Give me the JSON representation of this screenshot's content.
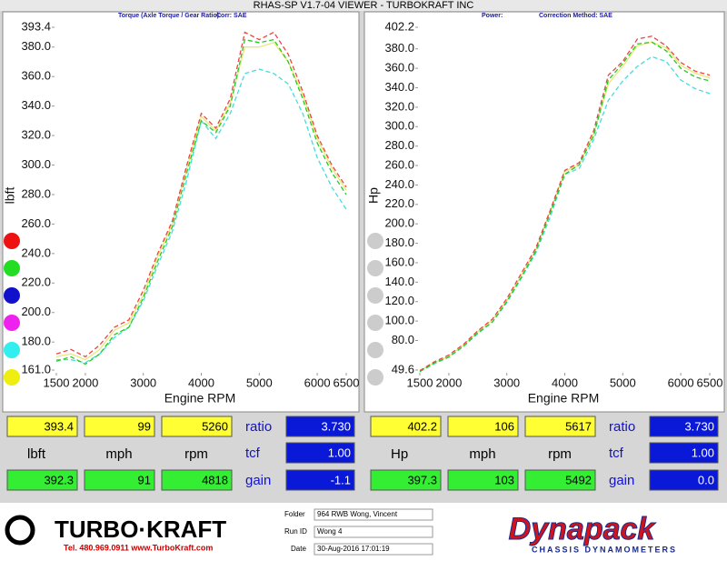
{
  "header": {
    "title": "RHAS-SP V1.7-04  VIEWER - TURBOKRAFT INC"
  },
  "chart_data": [
    {
      "type": "line",
      "subtitle": "Torque (Axle Torque / Gear Ratio):",
      "note": "Corr: SAE",
      "x_label": "Engine RPM",
      "y_label": "lbft",
      "x": [
        1500,
        1750,
        2000,
        2250,
        2500,
        2750,
        3000,
        3250,
        3500,
        3750,
        4000,
        4250,
        4500,
        4750,
        5000,
        5250,
        5500,
        5750,
        6000,
        6250,
        6500
      ],
      "xlim": [
        1500,
        6500
      ],
      "xticks": [
        1500,
        2000,
        3000,
        4000,
        5000,
        6000,
        6500
      ],
      "ylim": [
        161,
        393.4
      ],
      "yticks": [
        {
          "value": 161,
          "label": "161.0"
        },
        {
          "value": 180,
          "label": "180.0"
        },
        {
          "value": 200,
          "label": "200.0"
        },
        {
          "value": 220,
          "label": "220.0"
        },
        {
          "value": 240,
          "label": "240.0"
        },
        {
          "value": 260,
          "label": "260.0"
        },
        {
          "value": 280,
          "label": "280.0"
        },
        {
          "value": 300,
          "label": "300.0"
        },
        {
          "value": 320,
          "label": "320.0"
        },
        {
          "value": 340,
          "label": "340.0"
        },
        {
          "value": 360,
          "label": "360.0"
        },
        {
          "value": 380,
          "label": "380.0"
        },
        393.4
      ],
      "series": [
        {
          "color": "#e8e87a",
          "dashed": false,
          "values": [
            170,
            172,
            168,
            175,
            188,
            193,
            212,
            238,
            260,
            298,
            333,
            323,
            342,
            380,
            380,
            383,
            370,
            348,
            318,
            298,
            283
          ]
        },
        {
          "color": "#44dddd",
          "dashed": true,
          "values": [
            168,
            168,
            166,
            172,
            183,
            190,
            208,
            232,
            255,
            290,
            330,
            318,
            335,
            362,
            365,
            362,
            355,
            335,
            305,
            285,
            270
          ]
        },
        {
          "color": "#22cc22",
          "dashed": true,
          "values": [
            167,
            170,
            165,
            172,
            185,
            190,
            210,
            235,
            258,
            295,
            330,
            322,
            340,
            385,
            383,
            385,
            370,
            345,
            315,
            295,
            280
          ]
        },
        {
          "color": "#ee4444",
          "dashed": true,
          "values": [
            172,
            175,
            170,
            178,
            190,
            195,
            215,
            240,
            262,
            300,
            335,
            325,
            345,
            390,
            385,
            390,
            375,
            350,
            320,
            300,
            285
          ]
        }
      ]
    },
    {
      "type": "line",
      "subtitle": "Power:",
      "note": "Correction Method: SAE",
      "x_label": "Engine RPM",
      "y_label": "Hp",
      "x": [
        1500,
        1750,
        2000,
        2250,
        2500,
        2750,
        3000,
        3250,
        3500,
        3750,
        4000,
        4250,
        4500,
        4750,
        5000,
        5250,
        5500,
        5750,
        6000,
        6250,
        6500
      ],
      "xlim": [
        1500,
        6500
      ],
      "xticks": [
        1500,
        2000,
        3000,
        4000,
        5000,
        6000,
        6500
      ],
      "ylim": [
        49.6,
        402.2
      ],
      "yticks": [
        49.6,
        {
          "value": 80,
          "label": "80.0"
        },
        {
          "value": 100,
          "label": "100.0"
        },
        {
          "value": 120,
          "label": "120.0"
        },
        {
          "value": 140,
          "label": "140.0"
        },
        {
          "value": 160,
          "label": "160.0"
        },
        {
          "value": 180,
          "label": "180.0"
        },
        {
          "value": 200,
          "label": "200.0"
        },
        {
          "value": 220,
          "label": "220.0"
        },
        {
          "value": 240,
          "label": "240.0"
        },
        {
          "value": 260,
          "label": "260.0"
        },
        {
          "value": 280,
          "label": "280.0"
        },
        {
          "value": 300,
          "label": "300.0"
        },
        {
          "value": 320,
          "label": "320.0"
        },
        {
          "value": 340,
          "label": "340.0"
        },
        {
          "value": 360,
          "label": "360.0"
        },
        {
          "value": 380,
          "label": "380.0"
        },
        402.2
      ],
      "series": [
        {
          "color": "#e8e87a",
          "dashed": false,
          "values": [
            49,
            57,
            64,
            75,
            89,
            101,
            121,
            147,
            173,
            213,
            254,
            261,
            293,
            344,
            362,
            383,
            387,
            381,
            363,
            355,
            350
          ]
        },
        {
          "color": "#44dddd",
          "dashed": true,
          "values": [
            48,
            56,
            63,
            74,
            87,
            99,
            119,
            144,
            170,
            207,
            251,
            257,
            287,
            327,
            347,
            362,
            372,
            367,
            348,
            339,
            334
          ]
        },
        {
          "color": "#22cc22",
          "dashed": true,
          "values": [
            48,
            57,
            63,
            74,
            88,
            99,
            120,
            145,
            172,
            211,
            251,
            261,
            291,
            348,
            365,
            385,
            387,
            378,
            360,
            351,
            347
          ]
        },
        {
          "color": "#ee4444",
          "dashed": true,
          "values": [
            49,
            58,
            65,
            76,
            90,
            102,
            123,
            149,
            175,
            214,
            255,
            263,
            296,
            353,
            367,
            390,
            393,
            383,
            366,
            357,
            353
          ]
        }
      ]
    }
  ],
  "readouts": [
    {
      "peak": [
        "393.4",
        "99",
        "5260"
      ],
      "units": [
        "lbft",
        "mph",
        "rpm"
      ],
      "current": [
        "392.3",
        "91",
        "4818"
      ],
      "params": [
        {
          "label": "ratio",
          "value": "3.730"
        },
        {
          "label": "tcf",
          "value": "1.00"
        },
        {
          "label": "gain",
          "value": "-1.1"
        }
      ]
    },
    {
      "peak": [
        "402.2",
        "106",
        "5617"
      ],
      "units": [
        "Hp",
        "mph",
        "rpm"
      ],
      "current": [
        "397.3",
        "103",
        "5492"
      ],
      "params": [
        {
          "label": "ratio",
          "value": "3.730"
        },
        {
          "label": "tcf",
          "value": "1.00"
        },
        {
          "label": "gain",
          "value": "0.0"
        }
      ]
    }
  ],
  "footer": {
    "logo": "TURBO·KRAFT",
    "contact": "Tel. 480.969.0911  www.TurboKraft.com",
    "fields": [
      {
        "label": "Folder",
        "value": "964 RWB Wong, Vincent"
      },
      {
        "label": "Run ID",
        "value": "Wong 4"
      },
      {
        "label": "Date",
        "value": "30-Aug-2016  17:01:19"
      }
    ],
    "brand": "Dynapack",
    "tagline": "CHASSIS DYNAMOMETERS"
  }
}
